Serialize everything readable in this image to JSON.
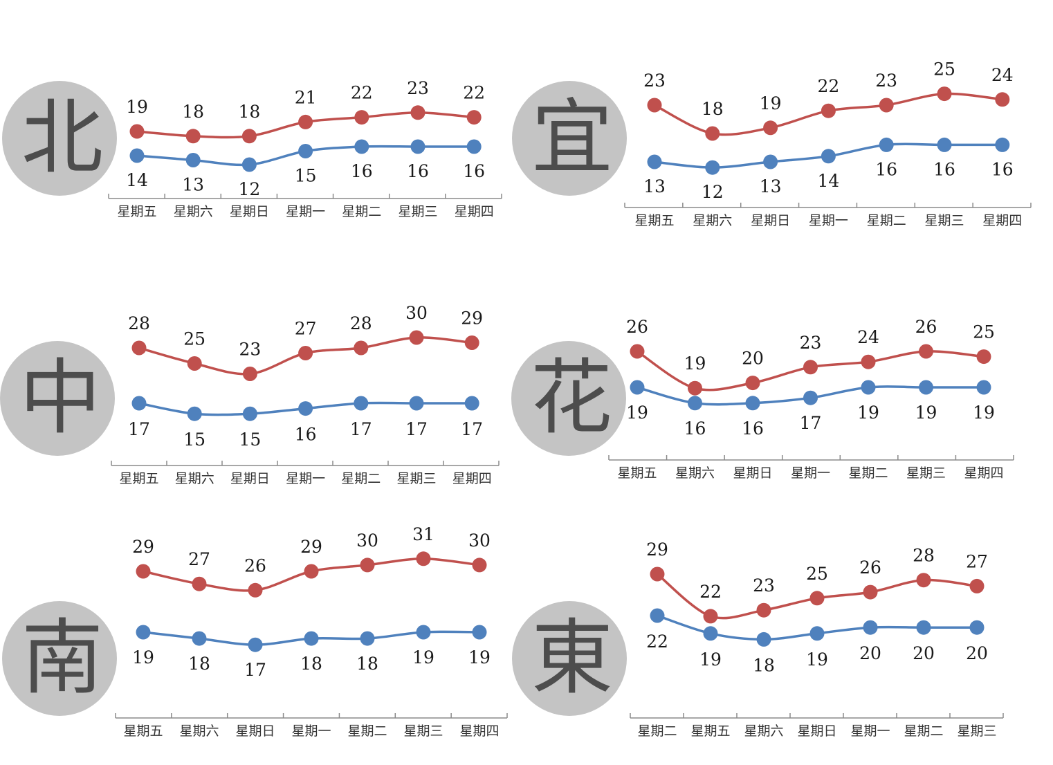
{
  "colors": {
    "high": "#c0504d",
    "low": "#4f81bd",
    "badge": "#c4c4c4",
    "badge_text": "#4d4d4d"
  },
  "chart_data": [
    {
      "type": "line",
      "region": "北",
      "categories": [
        "星期五",
        "星期六",
        "星期日",
        "星期一",
        "星期二",
        "星期三",
        "星期四"
      ],
      "series": [
        {
          "values": [
            19,
            18,
            18,
            21,
            22,
            23,
            22
          ]
        },
        {
          "values": [
            14,
            13,
            12,
            15,
            16,
            16,
            16
          ]
        }
      ],
      "grid": false,
      "legend": "none"
    },
    {
      "type": "line",
      "region": "宜",
      "categories": [
        "星期五",
        "星期六",
        "星期日",
        "星期一",
        "星期二",
        "星期三",
        "星期四"
      ],
      "series": [
        {
          "values": [
            23,
            18,
            19,
            22,
            23,
            25,
            24
          ]
        },
        {
          "values": [
            13,
            12,
            13,
            14,
            16,
            16,
            16
          ]
        }
      ],
      "grid": false,
      "legend": "none"
    },
    {
      "type": "line",
      "region": "中",
      "categories": [
        "星期五",
        "星期六",
        "星期日",
        "星期一",
        "星期二",
        "星期三",
        "星期四"
      ],
      "series": [
        {
          "values": [
            28,
            25,
            23,
            27,
            28,
            30,
            29
          ]
        },
        {
          "values": [
            17,
            15,
            15,
            16,
            17,
            17,
            17
          ]
        }
      ],
      "grid": false,
      "legend": "none"
    },
    {
      "type": "line",
      "region": "花",
      "categories": [
        "星期五",
        "星期六",
        "星期日",
        "星期一",
        "星期二",
        "星期三",
        "星期四"
      ],
      "series": [
        {
          "values": [
            26,
            19,
            20,
            23,
            24,
            26,
            25
          ]
        },
        {
          "values": [
            19,
            16,
            16,
            17,
            19,
            19,
            19
          ]
        }
      ],
      "grid": false,
      "legend": "none"
    },
    {
      "type": "line",
      "region": "南",
      "categories": [
        "星期五",
        "星期六",
        "星期日",
        "星期一",
        "星期二",
        "星期三",
        "星期四"
      ],
      "series": [
        {
          "values": [
            29,
            27,
            26,
            29,
            30,
            31,
            30
          ]
        },
        {
          "values": [
            19,
            18,
            17,
            18,
            18,
            19,
            19
          ]
        }
      ],
      "grid": false,
      "legend": "none"
    },
    {
      "type": "line",
      "region": "東",
      "categories": [
        "星期二",
        "星期五",
        "星期六",
        "星期日",
        "星期一",
        "星期二",
        "星期三"
      ],
      "series": [
        {
          "values": [
            29,
            22,
            23,
            25,
            26,
            28,
            27
          ]
        },
        {
          "values": [
            22,
            19,
            18,
            19,
            20,
            20,
            20
          ]
        }
      ],
      "grid": false,
      "legend": "none"
    }
  ]
}
